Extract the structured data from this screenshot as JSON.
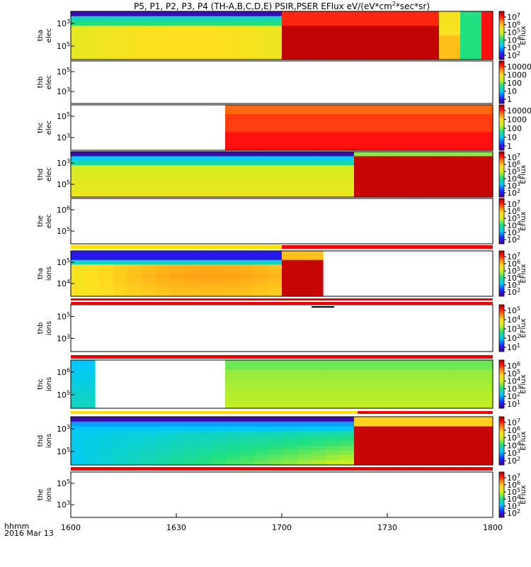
{
  "title_text": "P5, P1, P2, P3, P4 (TH-A,B,C,D,E) PSIR,PSER EFlux eV/(eV*cm",
  "title_sup": "2",
  "title_tail": "*sec*sr)",
  "footer": {
    "unit": "hhmm",
    "date": "2016 Mar 13"
  },
  "x_ticks": [
    "1600",
    "1630",
    "1700",
    "1730",
    "1800"
  ],
  "colorbar_title": "EFlux",
  "chart_data": {
    "type": "heatmap",
    "x_range": [
      "1600",
      "1800"
    ],
    "panels": [
      {
        "probe": "tha",
        "species": "elec",
        "ylabels": [
          "10^3",
          "10^5"
        ],
        "cbar_ticks": [
          "10^7",
          "10^6",
          "10^5",
          "10^4",
          "10^3",
          "10^2"
        ],
        "cbar_title": "EFlux"
      },
      {
        "probe": "thb",
        "species": "elec",
        "ylabels": [
          "10^5",
          "10^3"
        ],
        "cbar_ticks": [
          "10000",
          "1000",
          "100",
          "10",
          "1"
        ],
        "cbar_title": ""
      },
      {
        "probe": "thc",
        "species": "elec",
        "ylabels": [
          "10^5",
          "10^3"
        ],
        "cbar_ticks": [
          "10000",
          "1000",
          "100",
          "10",
          "1"
        ],
        "cbar_title": ""
      },
      {
        "probe": "thd",
        "species": "elec",
        "ylabels": [
          "10^3",
          "10^5"
        ],
        "cbar_ticks": [
          "10^7",
          "10^6",
          "10^5",
          "10^4",
          "10^3",
          "10^2"
        ],
        "cbar_title": "EFlux"
      },
      {
        "probe": "the",
        "species": "elec",
        "ylabels": [
          "10^6",
          "10^5"
        ],
        "cbar_ticks": [
          "10^7",
          "10^6",
          "10^5",
          "10^4",
          "10^3",
          "10^2"
        ],
        "cbar_title": "EFlux"
      },
      {
        "probe": "tha",
        "species": "ions",
        "ylabels": [
          "10^5",
          "10^4"
        ],
        "cbar_ticks": [
          "10^7",
          "10^6",
          "10^5",
          "10^4",
          "10^3",
          "10^2"
        ],
        "cbar_title": "EFlux"
      },
      {
        "probe": "thb",
        "species": "ions",
        "ylabels": [
          "10^5",
          "10^3"
        ],
        "cbar_ticks": [
          "10^5",
          "10^4",
          "10^3",
          "10^2",
          "10^1"
        ],
        "cbar_title": "EFlux"
      },
      {
        "probe": "thc",
        "species": "ions",
        "ylabels": [
          "10^6",
          "10^5"
        ],
        "cbar_ticks": [
          "10^6",
          "10^5",
          "10^4",
          "10^3",
          "10^2",
          "10^1"
        ],
        "cbar_title": "EFlux"
      },
      {
        "probe": "thd",
        "species": "ions",
        "ylabels": [
          "10^3",
          "10^5"
        ],
        "cbar_ticks": [
          "10^7",
          "10^6",
          "10^5",
          "10^4",
          "10^3",
          "10^2"
        ],
        "cbar_title": "EFlux"
      },
      {
        "probe": "the",
        "species": "ions",
        "ylabels": [
          "10^5",
          "10^3"
        ],
        "cbar_ticks": [
          "10^7",
          "10^6",
          "10^5",
          "10^4",
          "10^3",
          "10^2"
        ],
        "cbar_title": "EFlux"
      }
    ]
  }
}
